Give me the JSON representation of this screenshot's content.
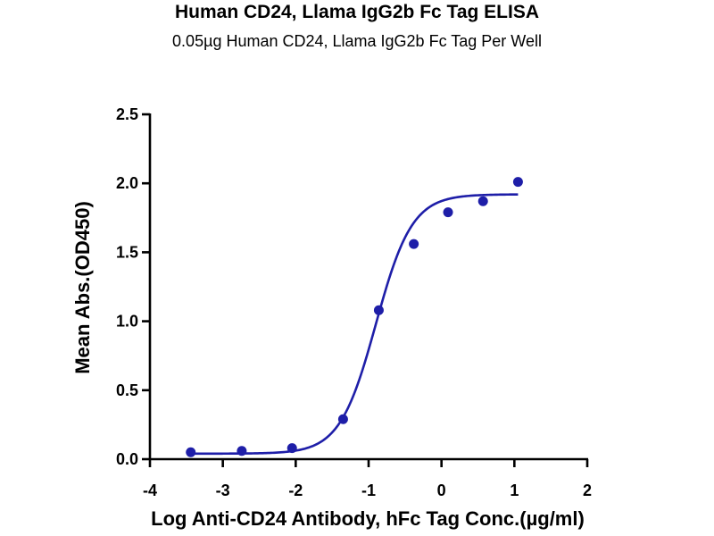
{
  "chart_data": {
    "type": "scatter",
    "title": "Human CD24, Llama IgG2b Fc Tag ELISA",
    "subtitle": "0.05µg Human CD24, Llama IgG2b Fc Tag Per Well",
    "xlabel": "Log Anti-CD24 Antibody, hFc Tag Conc.(µg/ml)",
    "ylabel": "Mean Abs.(OD450)",
    "xlim": [
      -4,
      2
    ],
    "ylim": [
      0,
      2.5
    ],
    "x_ticks": [
      "-4",
      "-3",
      "-2",
      "-1",
      "0",
      "1",
      "2"
    ],
    "y_ticks": [
      "0.0",
      "0.5",
      "1.0",
      "1.5",
      "2.0",
      "2.5"
    ],
    "grid": false,
    "series": [
      {
        "x": [
          -3.44,
          -2.74,
          -2.05,
          -1.35,
          -0.86,
          -0.38,
          0.09,
          0.57,
          1.05
        ],
        "y": [
          0.05,
          0.06,
          0.08,
          0.29,
          1.08,
          1.56,
          1.79,
          1.87,
          2.01
        ]
      }
    ],
    "fit_curve": {
      "type": "4PL",
      "bottom": 0.04,
      "top": 1.92,
      "log_ec50": -0.9,
      "hill": 1.75,
      "x_range": [
        -3.44,
        1.05
      ]
    },
    "colors": {
      "marker": "#1e1ea8",
      "curve": "#1e1ea8",
      "axis": "#000000"
    }
  }
}
